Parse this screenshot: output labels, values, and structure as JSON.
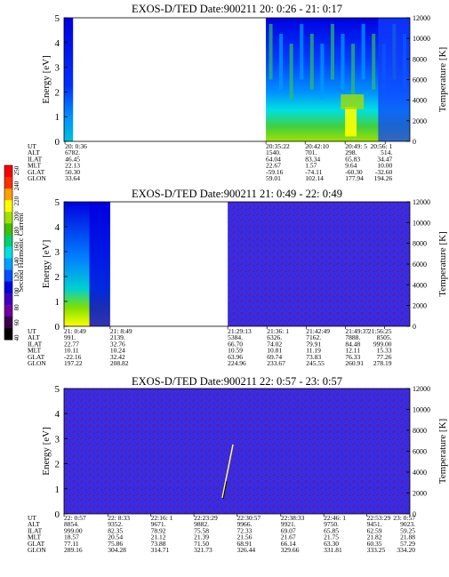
{
  "colorbar": {
    "label": "Second Harmonic Current",
    "ticks": [
      "40",
      "60",
      "80",
      "100",
      "120",
      "140",
      "160",
      "180",
      "200",
      "220",
      "240",
      "250"
    ],
    "colors": [
      "#000000",
      "#3a0050",
      "#7000a0",
      "#4000c0",
      "#0000e0",
      "#0050ff",
      "#00a0ff",
      "#00e0e0",
      "#00d070",
      "#40c000",
      "#a0e000",
      "#ffff00",
      "#ffa000",
      "#ff3000",
      "#ff0000"
    ]
  },
  "chart_data": [
    {
      "type": "heatmap",
      "title": "EXOS-D/TED   Date:900211  20: 0:26 - 21: 0:17",
      "ylabel": "Energy [eV]",
      "y2label": "Temperature [K]",
      "ylim": [
        0,
        5
      ],
      "y2lim": [
        0,
        12000
      ],
      "yticks": [
        "0",
        "1",
        "2",
        "3",
        "4",
        "5"
      ],
      "y2ticks": [
        "0",
        "2000",
        "4000",
        "6000",
        "8000",
        "10000",
        "12000"
      ],
      "xlim": [
        "20:0:26",
        "21:0:17"
      ],
      "data_intervals": [
        [
          "20:0:26",
          "20:2:00"
        ],
        [
          "20:35:22",
          "21:0:17"
        ]
      ],
      "ephemeris_labels": [
        "UT",
        "ALT",
        "ILAT",
        "MLT",
        "GLAT",
        "GLON"
      ],
      "ephemeris": [
        {
          "UT": "20: 0:36",
          "ALT": "6782.",
          "ILAT": "46.45",
          "MLT": "22.13",
          "GLAT": "50.30",
          "GLON": "33.64"
        },
        {
          "UT": "20:35:22",
          "ALT": "1540.",
          "ILAT": "64.04",
          "MLT": "22.67",
          "GLAT": "-59.16",
          "GLON": "59.01"
        },
        {
          "UT": "20:42:10",
          "ALT": "701.",
          "ILAT": "83.34",
          "MLT": "1.57",
          "GLAT": "-74.11",
          "GLON": "102.14"
        },
        {
          "UT": "20:49: 5",
          "ALT": "298.",
          "ILAT": "65.83",
          "MLT": "9.64",
          "GLAT": "-60.30",
          "GLON": "177.94"
        },
        {
          "UT": "20:56: 1",
          "ALT": "514.",
          "ILAT": "34.47",
          "MLT": "10.00",
          "GLAT": "-32.60",
          "GLON": "194.26"
        }
      ]
    },
    {
      "type": "heatmap",
      "title": "EXOS-D/TED   Date:900211  21: 0:49 - 22: 0:49",
      "ylabel": "Energy [eV]",
      "y2label": "Temperature [K]",
      "ylim": [
        0,
        5
      ],
      "y2lim": [
        0,
        12000
      ],
      "yticks": [
        "0",
        "1",
        "2",
        "3",
        "4",
        "5"
      ],
      "y2ticks": [
        "0",
        "2000",
        "4000",
        "6000",
        "8000",
        "10000",
        "12000"
      ],
      "xlim": [
        "21:0:49",
        "22:0:49"
      ],
      "data_intervals": [
        [
          "21:0:49",
          "21:8:49"
        ],
        [
          "21:29:13",
          "22:0:49"
        ]
      ],
      "ephemeris_labels": [
        "UT",
        "ALT",
        "ILAT",
        "MLT",
        "GLAT",
        "GLON"
      ],
      "ephemeris": [
        {
          "UT": "21: 0:49",
          "ALT": "991.",
          "ILAT": "22.77",
          "MLT": "10.11",
          "GLAT": "-22.16",
          "GLON": "197.22"
        },
        {
          "UT": "21: 8:49",
          "ALT": "2139.",
          "ILAT": "32.76",
          "MLT": "10.24",
          "GLAT": "32.42",
          "GLON": "208.82"
        },
        {
          "UT": "21:29:13",
          "ALT": "5384.",
          "ILAT": "66.70",
          "MLT": "10.59",
          "GLAT": "63.96",
          "GLON": "224.96"
        },
        {
          "UT": "21:36: 1",
          "ALT": "6326.",
          "ILAT": "74.02",
          "MLT": "10.81",
          "GLAT": "69.74",
          "GLON": "233.67"
        },
        {
          "UT": "21:42:49",
          "ALT": "7162.",
          "ILAT": "79.91",
          "MLT": "11.19",
          "GLAT": "73.83",
          "GLON": "245.55"
        },
        {
          "UT": "21:49:37",
          "ALT": "7888.",
          "ILAT": "84.48",
          "MLT": "12.11",
          "GLAT": "76.33",
          "GLON": "260.91"
        },
        {
          "UT": "21:56:25",
          "ALT": "8505.",
          "ILAT": "999.00",
          "MLT": "15.33",
          "GLAT": "77.26",
          "GLON": "278.19"
        }
      ]
    },
    {
      "type": "heatmap",
      "title": "EXOS-D/TED   Date:900211  22: 0:57 - 23: 0:57",
      "ylabel": "Energy [eV]",
      "y2label": "Temperature [K]",
      "ylim": [
        0,
        5
      ],
      "y2lim": [
        0,
        12000
      ],
      "yticks": [
        "0",
        "1",
        "2",
        "3",
        "4",
        "5"
      ],
      "y2ticks": [
        "0",
        "2000",
        "4000",
        "6000",
        "8000",
        "10000",
        "12000"
      ],
      "xlim": [
        "22:0:57",
        "23:0:57"
      ],
      "data_intervals": [
        [
          "22:0:57",
          "23:0:57"
        ]
      ],
      "ephemeris_labels": [
        "UT",
        "ALT",
        "ILAT",
        "MLT",
        "GLAT",
        "GLON"
      ],
      "ephemeris": [
        {
          "UT": "22: 0:57",
          "ALT": "8854.",
          "ILAT": "999.00",
          "MLT": "18.57",
          "GLAT": "77.11",
          "GLON": "289.16"
        },
        {
          "UT": "22: 8:33",
          "ALT": "9352.",
          "ILAT": "82.35",
          "MLT": "20.54",
          "GLAT": "75.86",
          "GLON": "304.28"
        },
        {
          "UT": "22:16: 1",
          "ALT": "9671.",
          "ILAT": "78.92",
          "MLT": "21.12",
          "GLAT": "73.88",
          "GLON": "314.71"
        },
        {
          "UT": "22:23:29",
          "ALT": "9882.",
          "ILAT": "75.58",
          "MLT": "21.39",
          "GLAT": "71.50",
          "GLON": "321.73"
        },
        {
          "UT": "22:30:57",
          "ALT": "9966.",
          "ILAT": "72.33",
          "MLT": "21.56",
          "GLAT": "68.91",
          "GLON": "326.44"
        },
        {
          "UT": "22:38:33",
          "ALT": "9921.",
          "ILAT": "69.07",
          "MLT": "21.67",
          "GLAT": "66.14",
          "GLON": "329.66"
        },
        {
          "UT": "22:46: 1",
          "ALT": "9750.",
          "ILAT": "65.85",
          "MLT": "21.75",
          "GLAT": "63.30",
          "GLON": "331.81"
        },
        {
          "UT": "22:53:29",
          "ALT": "9451.",
          "ILAT": "62.59",
          "MLT": "21.82",
          "GLAT": "60.35",
          "GLON": "333.25"
        },
        {
          "UT": "23: 0:57",
          "ALT": "9023.",
          "ILAT": "59.25",
          "MLT": "21.88",
          "GLAT": "57.29",
          "GLON": "334.20"
        }
      ]
    }
  ]
}
